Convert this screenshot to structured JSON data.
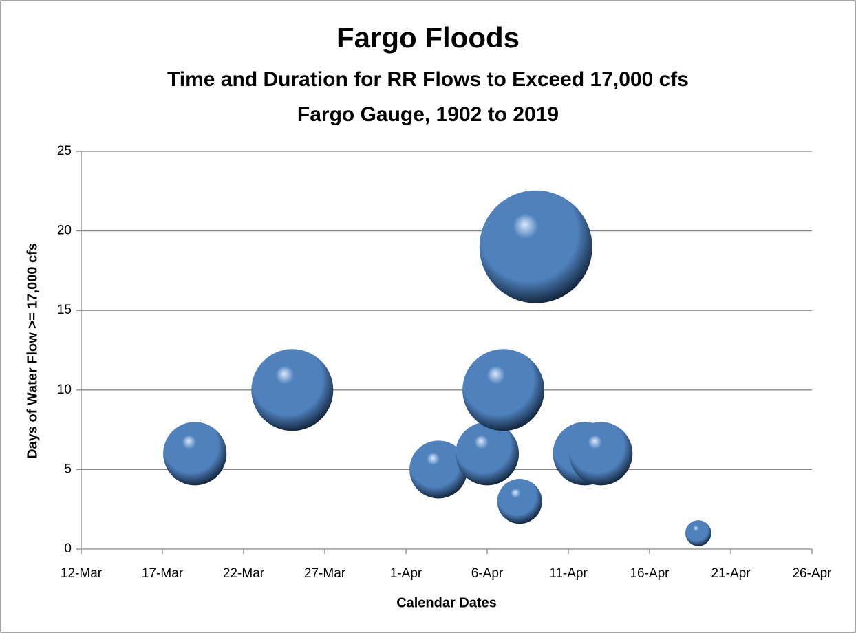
{
  "chart_data": {
    "type": "bubble",
    "title": "Fargo Floods",
    "subtitle": [
      "Time and Duration for RR Flows to Exceed 17,000 cfs",
      "Fargo Gauge, 1902 to 2019"
    ],
    "x_label": "Calendar Dates",
    "y_label": "Days of Water Flow >= 17,000 cfs",
    "x": [
      "19-Mar",
      "25-Mar",
      "3-Apr",
      "6-Apr",
      "7-Apr",
      "8-Apr",
      "9-Apr",
      "12-Apr",
      "13-Apr",
      "19-Apr"
    ],
    "values": [
      6,
      10,
      5,
      6,
      10,
      3,
      19,
      6,
      6,
      1
    ],
    "sizes": [
      6,
      10,
      5,
      6,
      10,
      3,
      19,
      6,
      6,
      1
    ],
    "color": "#4f81bd",
    "xlim": [
      "12-Mar",
      "26-Apr"
    ],
    "xticks": [
      "12-Mar",
      "17-Mar",
      "22-Mar",
      "27-Mar",
      "1-Apr",
      "6-Apr",
      "11-Apr",
      "16-Apr",
      "21-Apr",
      "26-Apr"
    ],
    "ylim": [
      0,
      25
    ],
    "yticks": [
      0,
      5,
      10,
      15,
      20,
      25
    ],
    "grid": true
  }
}
